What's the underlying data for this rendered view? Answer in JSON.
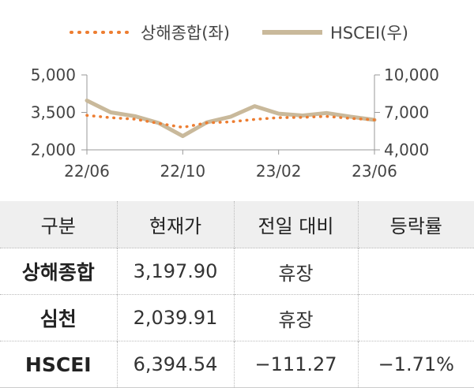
{
  "chart_data": {
    "type": "line",
    "title": "",
    "legend": {
      "position": "top-center"
    },
    "x_ticks": [
      "22/06",
      "22/10",
      "23/02",
      "23/06"
    ],
    "y_left": {
      "ticks": [
        "2,000",
        "3,500",
        "5,000"
      ],
      "range": [
        2000,
        5000
      ]
    },
    "y_right": {
      "ticks": [
        "4,000",
        "7,000",
        "10,000"
      ],
      "range": [
        4000,
        10000
      ]
    },
    "series": [
      {
        "name": "상해종합(좌)",
        "axis": "left",
        "color": "#ED7D31",
        "style": "dotted",
        "x": [
          "22/06",
          "22/07",
          "22/08",
          "22/09",
          "22/10",
          "22/11",
          "22/12",
          "23/01",
          "23/02",
          "23/03",
          "23/04",
          "23/05",
          "23/06"
        ],
        "values": [
          3380,
          3290,
          3230,
          3060,
          2900,
          3080,
          3120,
          3220,
          3290,
          3300,
          3340,
          3260,
          3200
        ]
      },
      {
        "name": "HSCEI(우)",
        "axis": "right",
        "color": "#C9B99B",
        "style": "solid",
        "x": [
          "22/06",
          "22/07",
          "22/08",
          "22/09",
          "22/10",
          "22/11",
          "22/12",
          "23/01",
          "23/02",
          "23/03",
          "23/04",
          "23/05",
          "23/06"
        ],
        "values": [
          7950,
          7000,
          6700,
          6150,
          5100,
          6200,
          6650,
          7500,
          6900,
          6750,
          6950,
          6650,
          6400
        ]
      }
    ]
  },
  "table": {
    "headers": [
      "구분",
      "현재가",
      "전일 대비",
      "등락률"
    ],
    "rows": [
      {
        "name": "상해종합",
        "price": "3,197.90",
        "change": "휴장",
        "rate": ""
      },
      {
        "name": "심천",
        "price": "2,039.91",
        "change": "휴장",
        "rate": ""
      },
      {
        "name": "HSCEI",
        "price": "6,394.54",
        "change": "−111.27",
        "rate": "−1.71%"
      }
    ]
  }
}
